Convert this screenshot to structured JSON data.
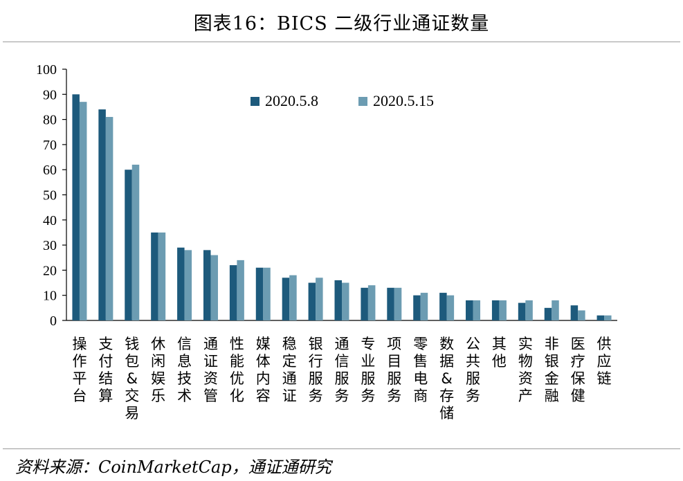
{
  "title": "图表16：BICS 二级行业通证数量",
  "source": "资料来源：CoinMarketCap，通证通研究",
  "colors": {
    "series1": "#1d5a7c",
    "series2": "#6c9cb2",
    "axis": "#000000",
    "rule": "#9a9a9a"
  },
  "chart_data": {
    "type": "bar",
    "title": "图表16：BICS 二级行业通证数量",
    "xlabel": "",
    "ylabel": "",
    "ylim": [
      0,
      100
    ],
    "yticks": [
      0,
      10,
      20,
      30,
      40,
      50,
      60,
      70,
      80,
      90,
      100
    ],
    "grid": false,
    "legend": "top-center",
    "categories": [
      "操作平台",
      "支付结算",
      "钱包&交易",
      "休闲娱乐",
      "信息技术",
      "通证资管",
      "性能优化",
      "媒体内容",
      "稳定通证",
      "银行服务",
      "通信服务",
      "专业服务",
      "项目服务",
      "零售电商",
      "数据&存储",
      "公共服务",
      "其他",
      "实物资产",
      "非银金融",
      "医疗保健",
      "供应链"
    ],
    "series": [
      {
        "name": "2020.5.8",
        "values": [
          90,
          84,
          60,
          35,
          29,
          28,
          22,
          21,
          17,
          15,
          16,
          13,
          13,
          10,
          11,
          8,
          8,
          7,
          5,
          6,
          2
        ]
      },
      {
        "name": "2020.5.15",
        "values": [
          87,
          81,
          62,
          35,
          28,
          26,
          24,
          21,
          18,
          17,
          15,
          14,
          13,
          11,
          10,
          8,
          8,
          8,
          8,
          4,
          2
        ]
      }
    ]
  }
}
